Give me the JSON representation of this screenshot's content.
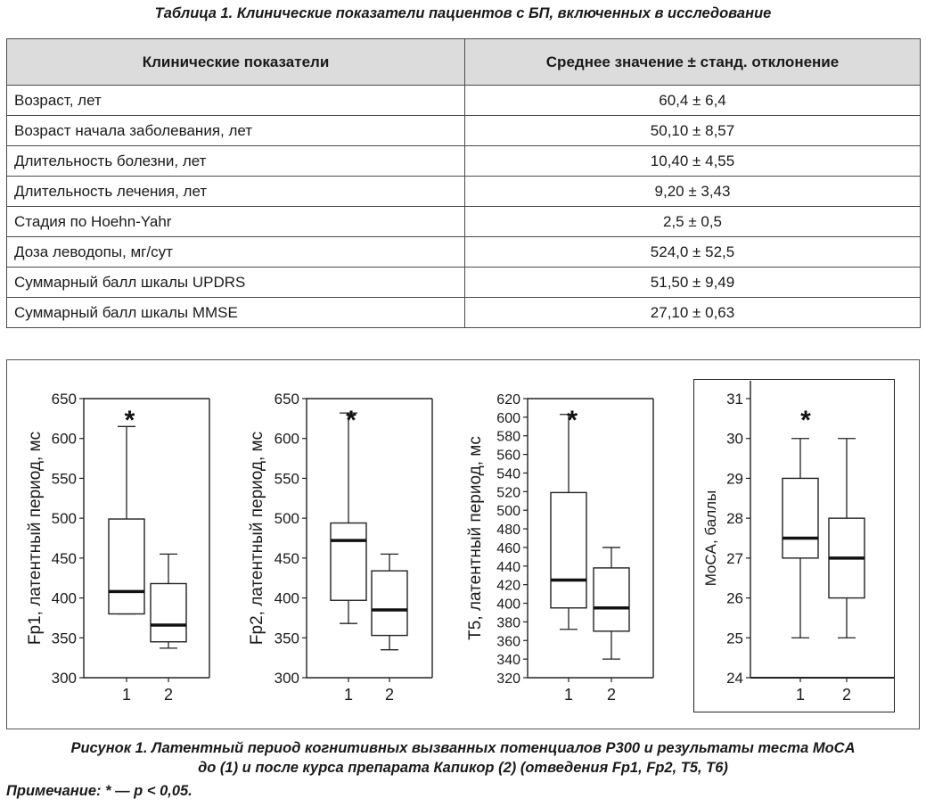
{
  "table": {
    "caption": "Таблица 1. Клинические показатели пациентов с БП, включенных в исследование",
    "headers": [
      "Клинические показатели",
      "Среднее значение ± станд. отклонение"
    ],
    "rows": [
      {
        "label": "Возраст, лет",
        "value": "60,4 ± 6,4"
      },
      {
        "label": "Возраст начала заболевания, лет",
        "value": "50,10 ± 8,57"
      },
      {
        "label": "Длительность болезни, лет",
        "value": "10,40 ± 4,55"
      },
      {
        "label": "Длительность лечения, лет",
        "value": "9,20 ± 3,43"
      },
      {
        "label": "Стадия по Hoehn-Yahr",
        "value": "2,5 ± 0,5"
      },
      {
        "label": "Доза леводопы, мг/сут",
        "value": "524,0 ± 52,5"
      },
      {
        "label": "Суммарный балл шкалы UPDRS",
        "value": "51,50 ± 9,49"
      },
      {
        "label": "Суммарный балл шкалы MMSE",
        "value": "27,10 ± 0,63"
      }
    ]
  },
  "chart_data": [
    {
      "type": "box",
      "ylabel": "Fp1, латентный период, мс",
      "ylim": [
        300,
        650
      ],
      "yticks": [
        300,
        350,
        400,
        450,
        500,
        550,
        600,
        650
      ],
      "categories": [
        "1",
        "2"
      ],
      "annotation": "*",
      "boxes": [
        {
          "min": 380,
          "q1": 380,
          "median": 408,
          "q3": 499,
          "max": 615
        },
        {
          "min": 337,
          "q1": 345,
          "median": 366,
          "q3": 418,
          "max": 455
        }
      ]
    },
    {
      "type": "box",
      "ylabel": "Fp2, латентный период, мс",
      "ylim": [
        300,
        650
      ],
      "yticks": [
        300,
        350,
        400,
        450,
        500,
        550,
        600,
        650
      ],
      "categories": [
        "1",
        "2"
      ],
      "annotation": "*",
      "boxes": [
        {
          "min": 368,
          "q1": 397,
          "median": 472,
          "q3": 494,
          "max": 632
        },
        {
          "min": 335,
          "q1": 353,
          "median": 385,
          "q3": 434,
          "max": 455
        }
      ]
    },
    {
      "type": "box",
      "ylabel": "T5, латентный период, мс",
      "ylim": [
        320,
        620
      ],
      "yticks": [
        320,
        340,
        360,
        380,
        400,
        420,
        440,
        460,
        480,
        500,
        520,
        540,
        560,
        580,
        600,
        620
      ],
      "categories": [
        "1",
        "2"
      ],
      "annotation": "*",
      "boxes": [
        {
          "min": 372,
          "q1": 395,
          "median": 425,
          "q3": 519,
          "max": 603
        },
        {
          "min": 340,
          "q1": 370,
          "median": 395,
          "q3": 438,
          "max": 460
        }
      ]
    },
    {
      "type": "box",
      "ylabel": "MoCA, баллы",
      "ylim": [
        24,
        31
      ],
      "yticks": [
        24,
        25,
        26,
        27,
        28,
        29,
        30,
        31
      ],
      "categories": [
        "1",
        "2"
      ],
      "annotation": "*",
      "boxes": [
        {
          "min": 25,
          "q1": 27,
          "median": 27.5,
          "q3": 29,
          "max": 30
        },
        {
          "min": 25,
          "q1": 26,
          "median": 27,
          "q3": 28,
          "max": 30
        }
      ]
    }
  ],
  "figure": {
    "caption_line1": "Рисунок 1. Латентный период когнитивных вызванных потенциалов P300 и результаты теста MoCA",
    "caption_line2": "до (1) и после курса препарата Капикор (2) (отведения Fp1, Fp2, T5, T6)",
    "note": "Примечание: * — p < 0,05."
  }
}
